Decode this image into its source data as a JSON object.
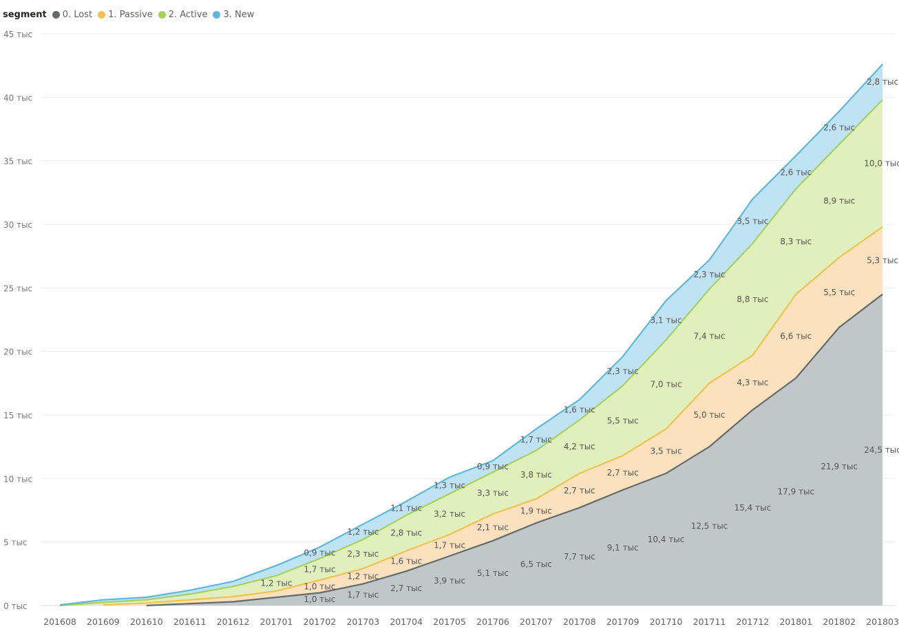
{
  "legend": {
    "title": "segment",
    "items": [
      {
        "label": "0. Lost",
        "color": "#5f6b6d"
      },
      {
        "label": "1. Passive",
        "color": "#f2c14e"
      },
      {
        "label": "2. Active",
        "color": "#a6d15a"
      },
      {
        "label": "3. New",
        "color": "#5bb8dc"
      }
    ]
  },
  "chart_data": {
    "type": "area",
    "stacked": true,
    "title": "",
    "xlabel": "",
    "ylabel": "",
    "ylim": [
      0,
      45000
    ],
    "y_ticks": [
      {
        "value": 0,
        "label": "0 тыс"
      },
      {
        "value": 5000,
        "label": "5 тыс"
      },
      {
        "value": 10000,
        "label": "10 тыс"
      },
      {
        "value": 15000,
        "label": "15 тыс"
      },
      {
        "value": 20000,
        "label": "20 тыс"
      },
      {
        "value": 25000,
        "label": "25 тыс"
      },
      {
        "value": 30000,
        "label": "30 тыс"
      },
      {
        "value": 35000,
        "label": "35 тыс"
      },
      {
        "value": 40000,
        "label": "40 тыс"
      },
      {
        "value": 45000,
        "label": "45 тыс"
      }
    ],
    "grid": true,
    "legend_position": "top-left",
    "categories": [
      "201608",
      "201609",
      "201610",
      "201611",
      "201612",
      "201701",
      "201702",
      "201703",
      "201704",
      "201705",
      "201706",
      "201707",
      "201708",
      "201709",
      "201710",
      "201711",
      "201712",
      "201801",
      "201802",
      "201803"
    ],
    "series": [
      {
        "name": "0. Lost",
        "fill": "#c1c6c8",
        "stroke": "#5f6b6d",
        "values": [
          null,
          null,
          0,
          150,
          300,
          650,
          1000,
          1700,
          2700,
          3900,
          5100,
          6500,
          7700,
          9100,
          10400,
          12500,
          15400,
          17900,
          21900,
          24500
        ],
        "labels": [
          null,
          null,
          null,
          null,
          null,
          null,
          "1,0 тыс",
          "1,7 тыс",
          "2,7 тыс",
          "3,9 тыс",
          "5,1 тыс",
          "6,5 тыс",
          "7,7 тыс",
          "9,1 тыс",
          "10,4 тыс",
          "12,5 тыс",
          "15,4 тыс",
          "17,9 тыс",
          "21,9 тыс",
          "24,5 тыс"
        ]
      },
      {
        "name": "1. Passive",
        "fill": "#fbe1bd",
        "stroke": "#f2c14e",
        "values": [
          null,
          50,
          200,
          300,
          400,
          500,
          1000,
          1200,
          1600,
          1700,
          2100,
          1900,
          2700,
          2700,
          3500,
          5000,
          4300,
          6600,
          5500,
          5300
        ],
        "labels": [
          null,
          null,
          null,
          null,
          null,
          null,
          "1,0 тыс",
          "1,2 тыс",
          "1,6 тыс",
          "1,7 тыс",
          "2,1 тыс",
          "1,9 тыс",
          "2,7 тыс",
          "2,7 тыс",
          "3,5 тыс",
          "5,0 тыс",
          "4,3 тыс",
          "6,6 тыс",
          "5,5 тыс",
          "5,3 тыс"
        ]
      },
      {
        "name": "2. Active",
        "fill": "#e1efbc",
        "stroke": "#a6d15a",
        "values": [
          0,
          200,
          250,
          450,
          800,
          1200,
          1700,
          2300,
          2800,
          3200,
          3300,
          3800,
          4200,
          5500,
          7000,
          7400,
          8800,
          8300,
          8900,
          10000
        ],
        "labels": [
          null,
          null,
          null,
          null,
          null,
          "1,2 тыс",
          "1,7 тыс",
          "2,3 тыс",
          "2,8 тыс",
          "3,2 тыс",
          "3,3 тыс",
          "3,8 тыс",
          "4,2 тыс",
          "5,5 тыс",
          "7,0 тыс",
          "7,4 тыс",
          "8,8 тыс",
          "8,3 тыс",
          "8,9 тыс",
          "10,0 тыс"
        ]
      },
      {
        "name": "3. New",
        "fill": "#c0e3f3",
        "stroke": "#5bb8dc",
        "values": [
          50,
          200,
          200,
          300,
          400,
          800,
          900,
          1200,
          1100,
          1300,
          900,
          1700,
          1600,
          2300,
          3100,
          2300,
          3500,
          2600,
          2600,
          2800
        ],
        "labels": [
          null,
          null,
          null,
          null,
          null,
          null,
          "0,9 тыс",
          "1,2 тыс",
          "1,1 тыс",
          "1,3 тыс",
          "0,9 тыс",
          "1,7 тыс",
          "1,6 тыс",
          "2,3 тыс",
          "3,1 тыс",
          "2,3 тыс",
          "3,5 тыс",
          "2,6 тыс",
          "2,6 тыс",
          "2,8 тыс"
        ]
      }
    ]
  }
}
